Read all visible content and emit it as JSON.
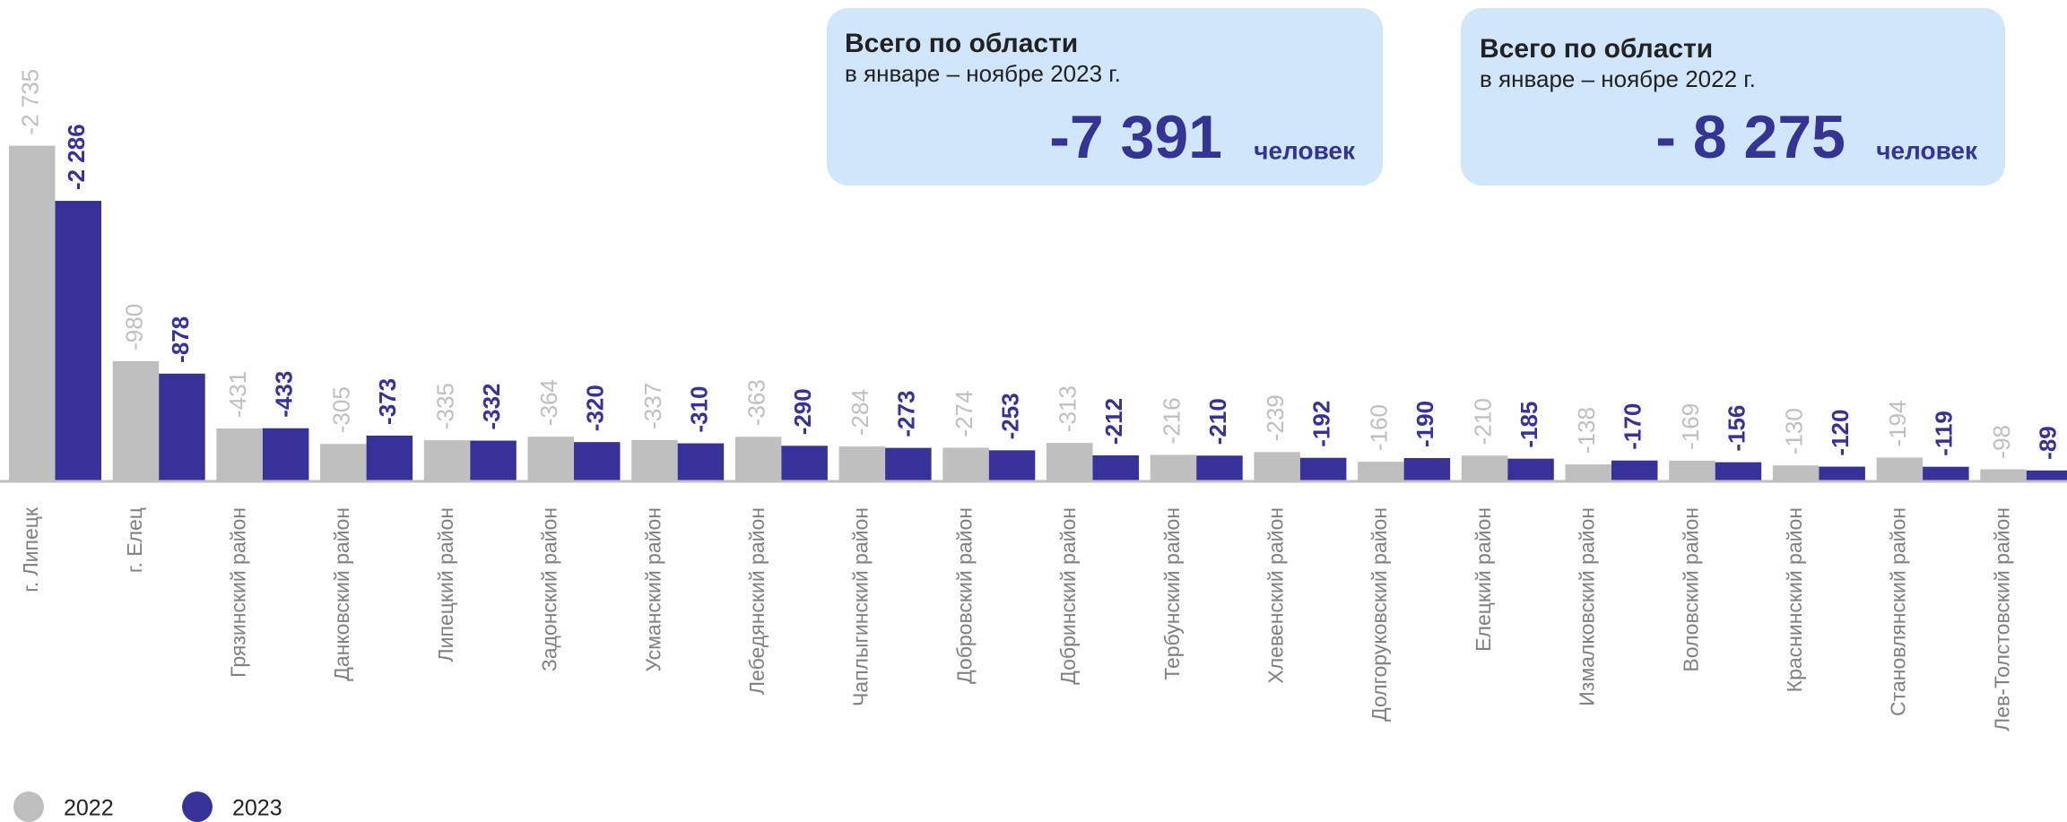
{
  "chart_data": {
    "type": "bar",
    "categories": [
      "г. Липецк",
      "г. Елец",
      "Грязинский  район",
      "Данковский  район",
      "Липецкий  район",
      "Задонский  район",
      "Усманский район",
      "Лебедянский район",
      "Чаплыгинский район",
      "Добровский район",
      "Добринский район",
      "Тербунский район",
      "Хлевенский район",
      "Долгоруковский район",
      "Елецкий район",
      "Измалковский район",
      "Воловский район",
      "Краснинский район",
      "Становлянский район",
      "Лев-Толстовский район"
    ],
    "series": [
      {
        "name": "2022",
        "color": "#bfbfbf",
        "values": [
          -2735,
          -980,
          -431,
          -305,
          -335,
          -364,
          -337,
          -363,
          -284,
          -274,
          -313,
          -216,
          -239,
          -160,
          -210,
          -138,
          -169,
          -130,
          -194,
          -98
        ],
        "value_labels": [
          "-2 735",
          "-980",
          "-431",
          "-305",
          "-335",
          "-364",
          "-337",
          "-363",
          "-284",
          "-274",
          "-313",
          "-216",
          "-239",
          "-160",
          "-210",
          "-138",
          "-169",
          "-130",
          "-194",
          "-98"
        ]
      },
      {
        "name": "2023",
        "color": "#37329a",
        "values": [
          -2286,
          -878,
          -433,
          -373,
          -332,
          -320,
          -310,
          -290,
          -273,
          -253,
          -212,
          -210,
          -192,
          -190,
          -185,
          -170,
          -156,
          -120,
          -119,
          -89
        ],
        "value_labels": [
          "-2 286",
          "-878",
          "-433",
          "-373",
          "-332",
          "-320",
          "-310",
          "-290",
          "-273",
          "-253",
          "-212",
          "-210",
          "-192",
          "-190",
          "-185",
          "-170",
          "-156",
          "-120",
          "-119",
          "-89"
        ]
      }
    ],
    "ylim": [
      0,
      -2900
    ],
    "summary": [
      {
        "title": "Всего по области",
        "subtitle": "в январе – ноябре 2023 г.",
        "value": "-7 391",
        "unit": "человек"
      },
      {
        "title": "Всего по области",
        "subtitle": "в январе – ноябре 2022 г.",
        "value": "- 8 275",
        "unit": "человек"
      }
    ]
  }
}
